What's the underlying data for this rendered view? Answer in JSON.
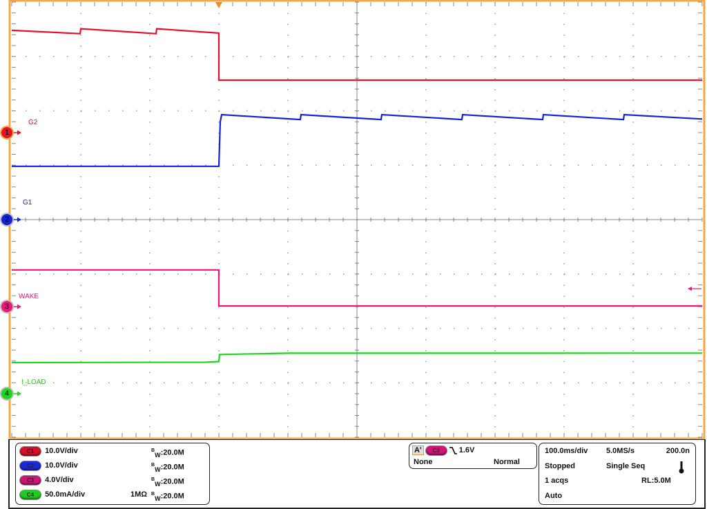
{
  "chart_data": {
    "type": "line",
    "title": "",
    "x_unit": "ms",
    "xlim": [
      -300,
      700
    ],
    "divisions": {
      "x": 10,
      "y": 8
    },
    "grid": true,
    "trigger_time": 0,
    "series": [
      {
        "name": "G2",
        "channel": "1",
        "color": "#e8102a",
        "scale_per_div": 10.0,
        "unit": "V",
        "offset_div": 1.6,
        "points": [
          [
            -300,
            18.8
          ],
          [
            -201,
            18.2
          ],
          [
            -200,
            19.1
          ],
          [
            -91,
            18.2
          ],
          [
            -90,
            19.1
          ],
          [
            0,
            18.3
          ],
          [
            0,
            9.65
          ],
          [
            700,
            9.65
          ]
        ]
      },
      {
        "name": "G1",
        "channel": "2",
        "color": "#1020e0",
        "scale_per_div": 10.0,
        "unit": "V",
        "offset_div": 0,
        "points": [
          [
            -300,
            9.8
          ],
          [
            0,
            9.8
          ],
          [
            2,
            18.0
          ],
          [
            4,
            19.3
          ],
          [
            118,
            18.4
          ],
          [
            119,
            19.3
          ],
          [
            235,
            18.4
          ],
          [
            236,
            19.3
          ],
          [
            352,
            18.4
          ],
          [
            353,
            19.3
          ],
          [
            469,
            18.4
          ],
          [
            470,
            19.3
          ],
          [
            586,
            18.4
          ],
          [
            587,
            19.3
          ],
          [
            700,
            18.5
          ]
        ]
      },
      {
        "name": "WAKE",
        "channel": "3",
        "color": "#f0137c",
        "scale_per_div": 4.0,
        "unit": "V",
        "offset_div": -1.6,
        "points": [
          [
            -300,
            2.7
          ],
          [
            0,
            2.7
          ],
          [
            0,
            0.05
          ],
          [
            700,
            0.05
          ]
        ]
      },
      {
        "name": "I_LOAD",
        "channel": "4",
        "color": "#18d818",
        "scale_per_div": 50.0,
        "unit": "mA",
        "offset_div": -3.2,
        "points": [
          [
            -300,
            28.6
          ],
          [
            -20,
            28.9
          ],
          [
            0,
            29.5
          ],
          [
            1,
            36.0
          ],
          [
            100,
            37.2
          ],
          [
            700,
            37.3
          ]
        ]
      }
    ]
  },
  "frame_color": "#f5a742",
  "channels": [
    {
      "badge": "C1",
      "scale": "10.0V/div",
      "coupling": "",
      "bw_b": "B",
      "bw_w": "W",
      "bw": ":20.0M",
      "color": "#d8102a"
    },
    {
      "badge": "C2",
      "scale": "10.0V/div",
      "coupling": "",
      "bw_b": "B",
      "bw_w": "W",
      "bw": ":20.0M",
      "color": "#1a2ad8"
    },
    {
      "badge": "C3",
      "scale": "4.0V/div",
      "coupling": "",
      "bw_b": "B",
      "bw_w": "W",
      "bw": ":20.0M",
      "color": "#d0157a"
    },
    {
      "badge": "C4",
      "scale": "50.0mA/div",
      "coupling": "1MΩ",
      "bw_b": "B",
      "bw_w": "W",
      "bw": ":20.0M",
      "color": "#22cc22"
    }
  ],
  "markers": [
    "1",
    "2",
    "3",
    "4"
  ],
  "trigger": {
    "label": "A'",
    "source": "C3",
    "slope": "falling-edge-icon",
    "level": "1.6V",
    "coupling": "None",
    "mode": "Normal"
  },
  "acquisition": {
    "timebase": "100.0ms/div",
    "sample_rate": "5.0MS/s",
    "resolution": "200.0n",
    "state": "Stopped",
    "mode": "Single Seq",
    "acqs": "1 acqs",
    "record_length": "RL:5.0M",
    "trigger_mode": "Auto",
    "icon": "thermometer-icon"
  }
}
